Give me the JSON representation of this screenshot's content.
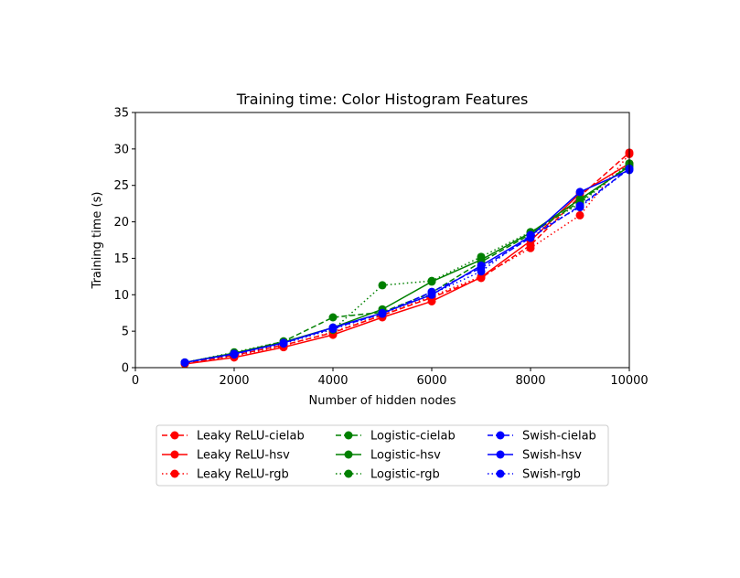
{
  "chart_data": {
    "type": "line",
    "title": "Training time: Color Histogram Features",
    "xlabel": "Number of hidden nodes",
    "ylabel": "Training time (s)",
    "xlim": [
      0,
      10000
    ],
    "ylim": [
      0,
      35
    ],
    "xticks": [
      0,
      2000,
      4000,
      6000,
      8000,
      10000
    ],
    "yticks": [
      0,
      5,
      10,
      15,
      20,
      25,
      30,
      35
    ],
    "x": [
      1000,
      2000,
      3000,
      4000,
      5000,
      6000,
      7000,
      8000,
      9000,
      10000
    ],
    "grid": false,
    "legend_position": "bottom-center",
    "series": [
      {
        "name": "Leaky ReLU-cielab",
        "color": "#ff0000",
        "dash": "dashed",
        "values": [
          0.6,
          1.7,
          3.1,
          4.8,
          7.2,
          9.6,
          12.3,
          16.8,
          23.5,
          29.5
        ]
      },
      {
        "name": "Leaky ReLU-hsv",
        "color": "#ff0000",
        "dash": "solid",
        "values": [
          0.5,
          1.4,
          2.8,
          4.5,
          6.9,
          9.1,
          12.4,
          17.4,
          23.9,
          28.0
        ]
      },
      {
        "name": "Leaky ReLU-rgb",
        "color": "#ff0000",
        "dash": "dotted",
        "values": [
          0.6,
          1.6,
          3.0,
          4.9,
          7.2,
          9.8,
          12.5,
          16.4,
          20.9,
          29.3
        ]
      },
      {
        "name": "Logistic-cielab",
        "color": "#008000",
        "dash": "dashed",
        "values": [
          0.7,
          2.0,
          3.6,
          6.9,
          7.6,
          10.3,
          14.5,
          18.3,
          22.8,
          27.8
        ]
      },
      {
        "name": "Logistic-hsv",
        "color": "#008000",
        "dash": "solid",
        "values": [
          0.7,
          2.0,
          3.5,
          5.5,
          8.0,
          11.8,
          14.8,
          18.5,
          23.1,
          27.6
        ]
      },
      {
        "name": "Logistic-rgb",
        "color": "#008000",
        "dash": "dotted",
        "values": [
          0.7,
          2.1,
          3.6,
          5.2,
          11.3,
          11.9,
          15.2,
          18.6,
          22.5,
          28.0
        ]
      },
      {
        "name": "Swish-cielab",
        "color": "#0000ff",
        "dash": "dashed",
        "values": [
          0.7,
          1.9,
          3.4,
          5.4,
          7.4,
          10.4,
          13.7,
          17.8,
          22.2,
          27.3
        ]
      },
      {
        "name": "Swish-hsv",
        "color": "#0000ff",
        "dash": "solid",
        "values": [
          0.7,
          1.9,
          3.4,
          5.5,
          7.5,
          10.0,
          14.0,
          18.0,
          24.1,
          27.1
        ]
      },
      {
        "name": "Swish-rgb",
        "color": "#0000ff",
        "dash": "dotted",
        "values": [
          0.7,
          1.8,
          3.3,
          5.3,
          7.4,
          10.1,
          13.2,
          18.2,
          22.0,
          27.3
        ]
      }
    ]
  }
}
